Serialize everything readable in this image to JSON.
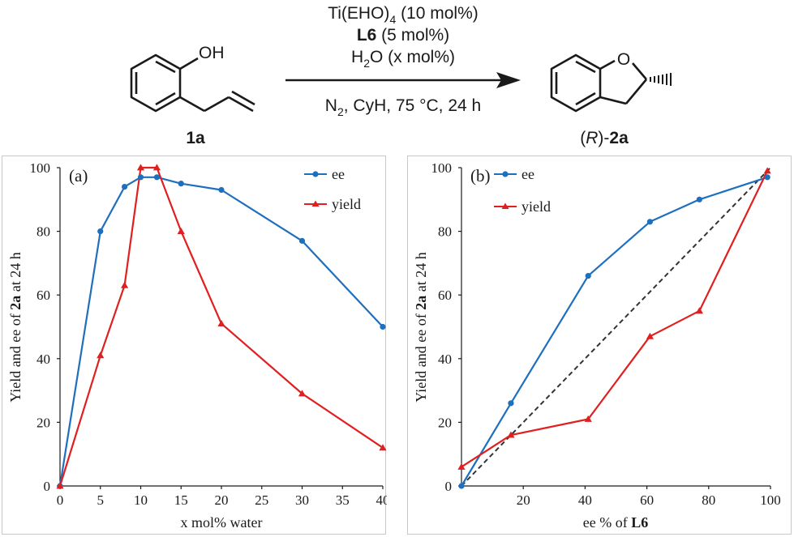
{
  "scheme": {
    "reagent_line1_main": "Ti(EHO)",
    "reagent_line1_sub": "4",
    "reagent_line1_tail": " (10 mol%)",
    "reagent_line2_bold": "L6",
    "reagent_line2_tail": " (5 mol%)",
    "reagent_line3_main": "H",
    "reagent_line3_sub": "2",
    "reagent_line3_tail": "O (x mol%)",
    "conditions_main": "N",
    "conditions_sub": "2",
    "conditions_tail": ", CyH, 75 °C, 24 h",
    "substrate_label": "1a",
    "substrate_oh": "OH",
    "product_o": "O",
    "product_label_open": "(",
    "product_label_italic": "R",
    "product_label_mid": ")-",
    "product_label_bold": "2a"
  },
  "chart_data": [
    {
      "type": "line",
      "panel_label": "(a)",
      "xlabel": "x mol% water",
      "ylabel_pre": "Yield and ee of ",
      "ylabel_bold": "2a",
      "ylabel_post": " at 24 h",
      "xlim": [
        0,
        40
      ],
      "ylim": [
        0,
        100
      ],
      "xticks": [
        0,
        5,
        10,
        15,
        20,
        25,
        30,
        35,
        40
      ],
      "yticks": [
        0,
        20,
        40,
        60,
        80,
        100
      ],
      "legend_position": "top-right",
      "series": [
        {
          "name": "ee",
          "color": "#1f6fbf",
          "marker": "circle",
          "x": [
            0,
            5,
            8,
            10,
            12,
            15,
            20,
            30,
            40
          ],
          "y": [
            0,
            80,
            94,
            97,
            97,
            95,
            93,
            77,
            50
          ]
        },
        {
          "name": "yield",
          "color": "#e02020",
          "marker": "triangle",
          "x": [
            0,
            5,
            8,
            10,
            12,
            15,
            20,
            30,
            40
          ],
          "y": [
            0,
            41,
            63,
            100,
            100,
            80,
            51,
            29,
            12
          ]
        }
      ]
    },
    {
      "type": "line",
      "panel_label": "(b)",
      "xlabel_pre": "ee % of ",
      "xlabel_bold": "L6",
      "ylabel_pre": "Yield and ee of ",
      "ylabel_bold": "2a",
      "ylabel_post": " at 24 h",
      "xlim": [
        0,
        100
      ],
      "ylim": [
        0,
        100
      ],
      "xticks": [
        20,
        40,
        60,
        80,
        100
      ],
      "yticks": [
        0,
        20,
        40,
        60,
        80,
        100
      ],
      "legend_position": "top-left",
      "reference_line": {
        "x": [
          0,
          100
        ],
        "y": [
          0,
          100
        ],
        "style": "dashed",
        "color": "#333333"
      },
      "series": [
        {
          "name": "ee",
          "color": "#1f6fbf",
          "marker": "circle",
          "x": [
            0,
            16,
            41,
            61,
            77,
            99
          ],
          "y": [
            0,
            26,
            66,
            83,
            90,
            97
          ]
        },
        {
          "name": "yield",
          "color": "#e02020",
          "marker": "triangle",
          "x": [
            0,
            16,
            41,
            61,
            77,
            99
          ],
          "y": [
            6,
            16,
            21,
            47,
            55,
            99
          ]
        }
      ]
    }
  ]
}
